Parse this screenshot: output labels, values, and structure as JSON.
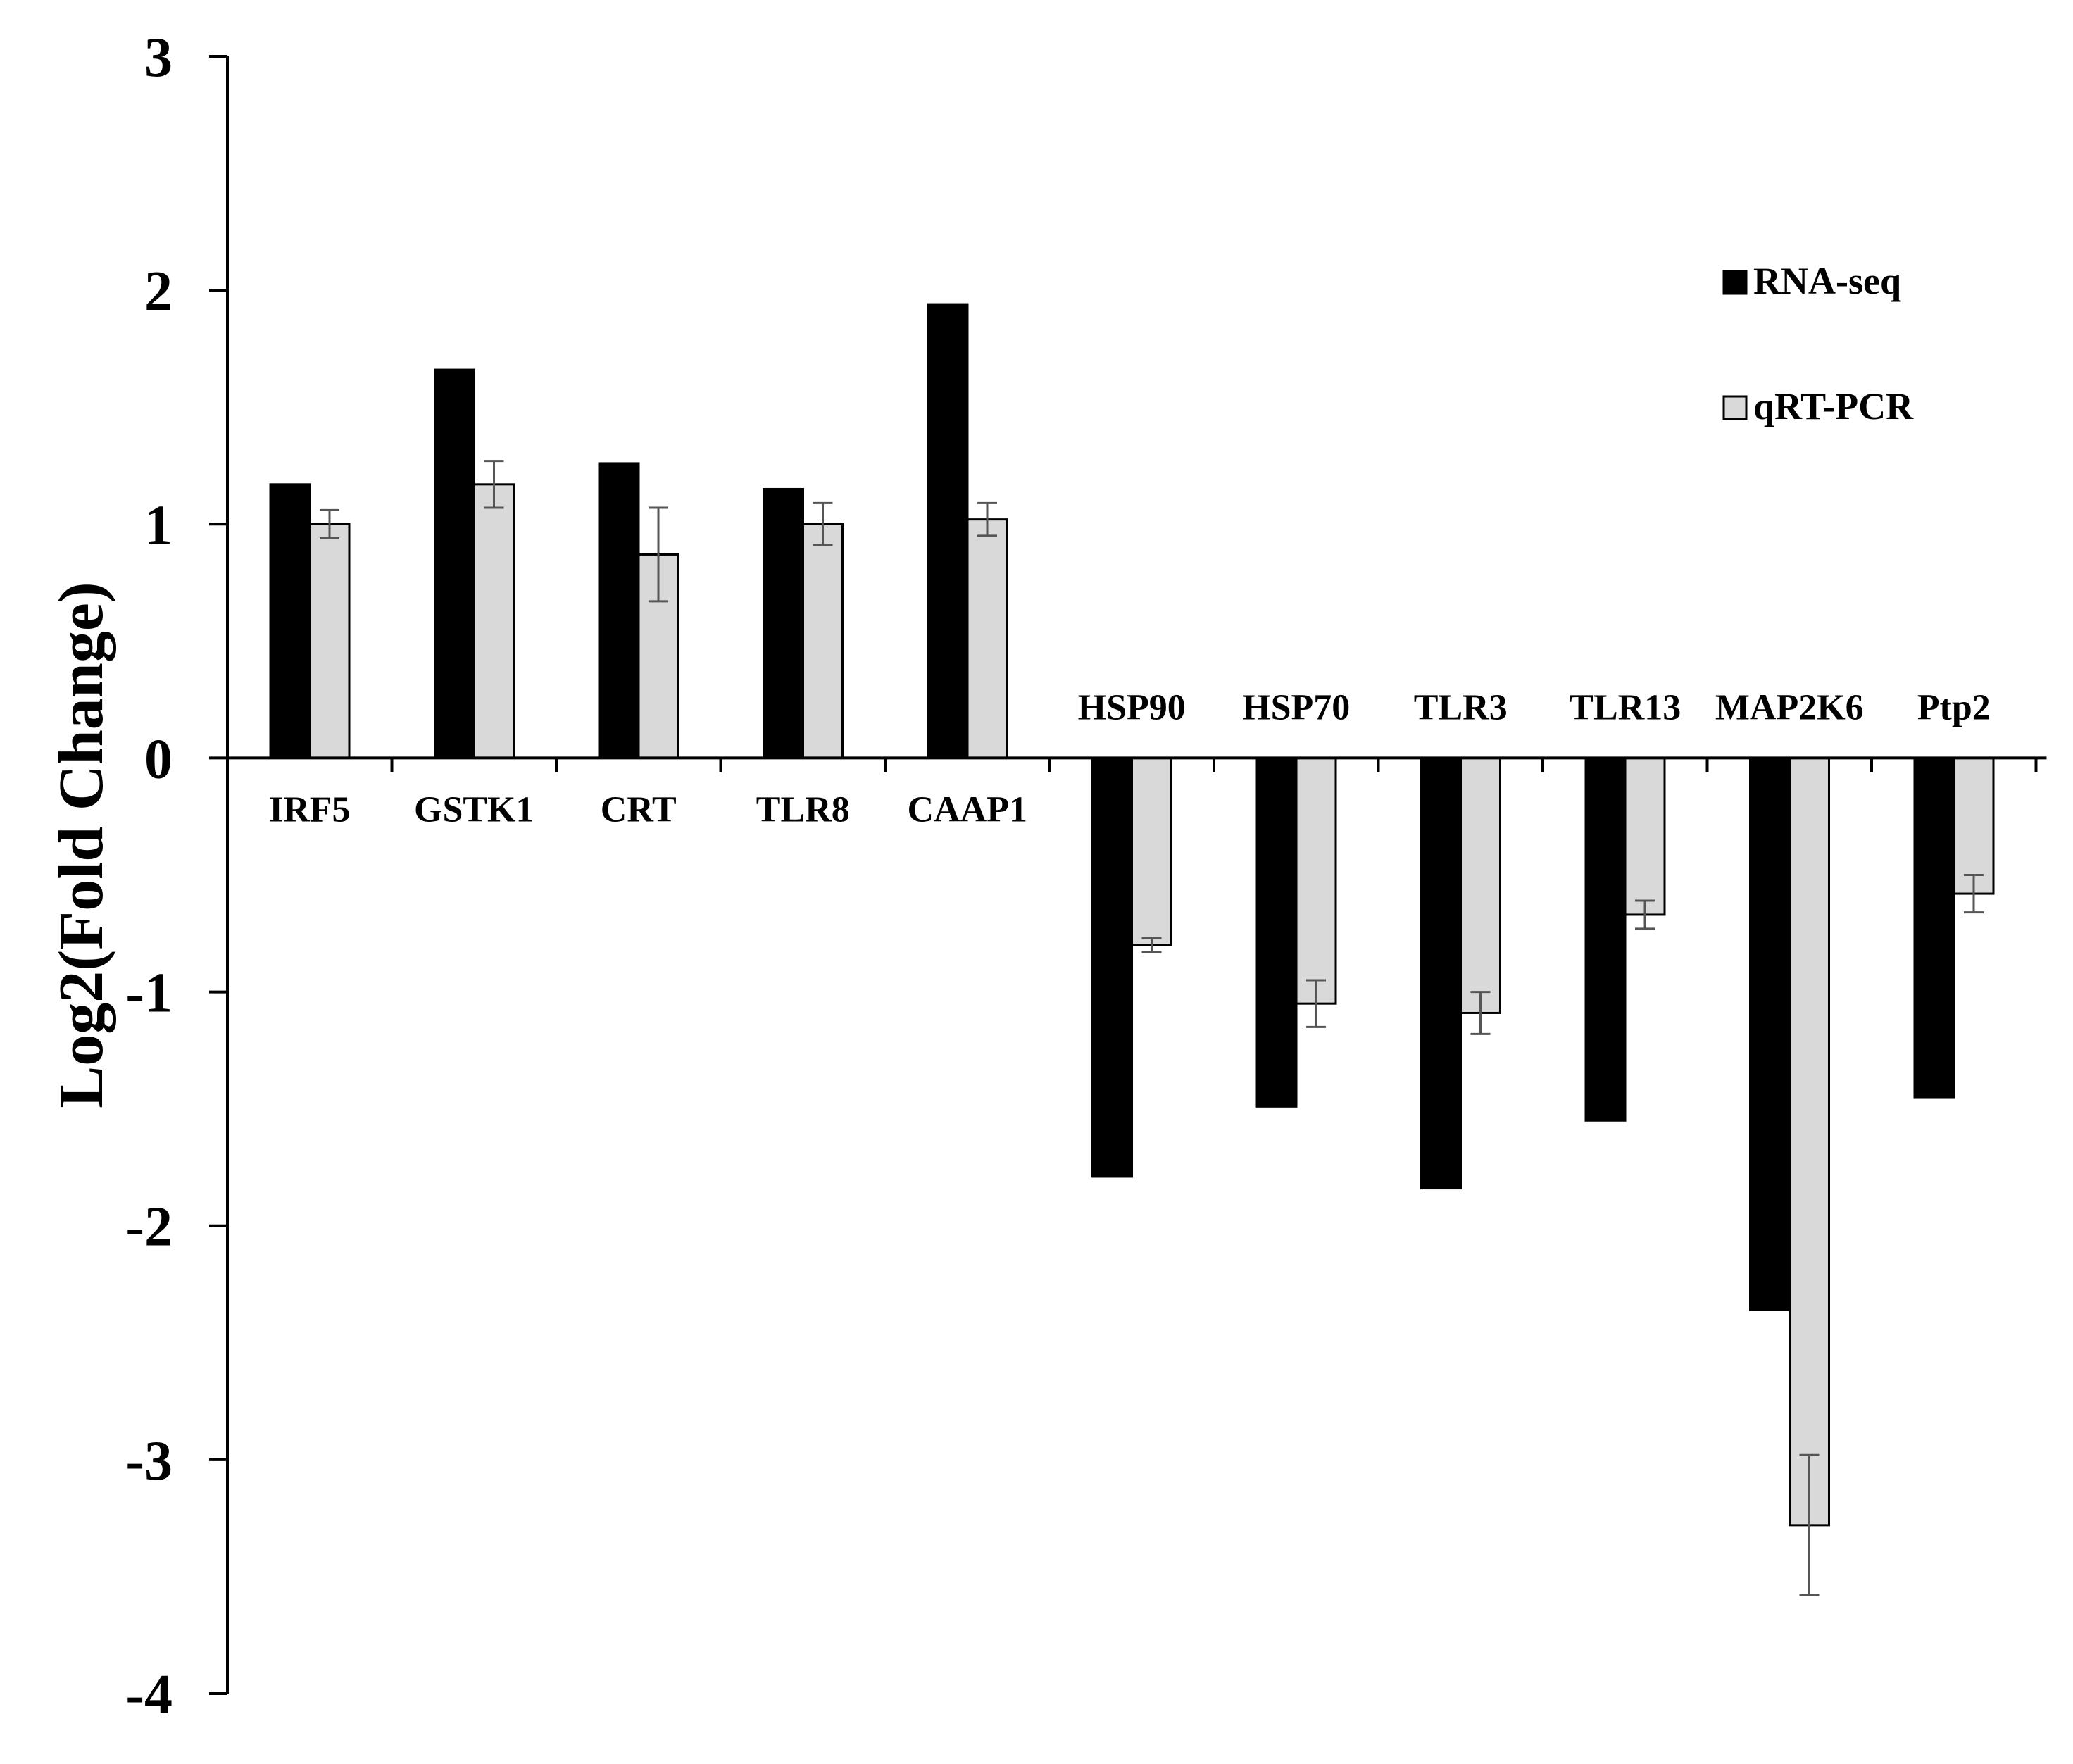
{
  "chart_data": {
    "type": "bar",
    "title": "",
    "xlabel": "",
    "ylabel": "Log2(Fold Change)",
    "ylim": [
      -4,
      3
    ],
    "yticks": [
      "3",
      "2",
      "1",
      "0",
      "-1",
      "-2",
      "-3",
      "-4"
    ],
    "grid": false,
    "legend_position": "top-right",
    "categories": [
      "IRF5",
      "GSTK1",
      "CRT",
      "TLR8",
      "CAAP1",
      "HSP90",
      "HSP70",
      "TLR3",
      "TLR13",
      "MAP2K6",
      "Ptp2"
    ],
    "series": [
      {
        "name": "RNA-seq",
        "color": "#000000",
        "values": [
          1.17,
          1.66,
          1.26,
          1.15,
          1.94,
          -1.79,
          -1.49,
          -1.84,
          -1.55,
          -2.36,
          -1.45
        ]
      },
      {
        "name": "qRT-PCR",
        "color": "#d9d9d9",
        "values": [
          1.0,
          1.17,
          0.87,
          1.0,
          1.02,
          -0.8,
          -1.05,
          -1.09,
          -0.67,
          -3.28,
          -0.58
        ],
        "error": [
          0.06,
          0.1,
          0.2,
          0.09,
          0.07,
          0.03,
          0.1,
          0.09,
          0.06,
          0.3,
          0.08
        ]
      }
    ],
    "label_position": [
      "below",
      "below",
      "below",
      "below",
      "below",
      "above",
      "above",
      "above",
      "above",
      "above",
      "above"
    ]
  }
}
